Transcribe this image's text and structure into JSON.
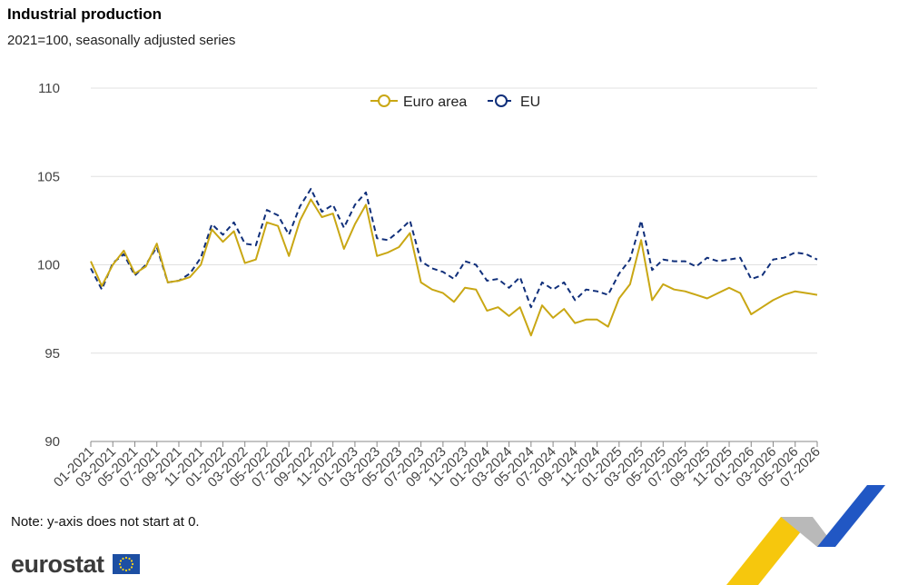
{
  "header": {
    "title": "Industrial production",
    "subtitle": "2021=100, seasonally adjusted series"
  },
  "footer": {
    "note": "Note: y-axis does not start at 0.",
    "logo_text": "eurostat"
  },
  "chart_data": {
    "type": "line",
    "title": "Industrial production",
    "subtitle": "2021=100, seasonally adjusted series",
    "xlabel": "",
    "ylabel": "",
    "ylim": [
      90,
      110
    ],
    "yticks": [
      90,
      95,
      100,
      105,
      110
    ],
    "grid": true,
    "legend_position": "top-center",
    "x": [
      "01-2021",
      "02-2021",
      "03-2021",
      "04-2021",
      "05-2021",
      "06-2021",
      "07-2021",
      "08-2021",
      "09-2021",
      "10-2021",
      "11-2021",
      "12-2021",
      "01-2022",
      "02-2022",
      "03-2022",
      "04-2022",
      "05-2022",
      "06-2022",
      "07-2022",
      "08-2022",
      "09-2022",
      "10-2022",
      "11-2022",
      "12-2022",
      "01-2023",
      "02-2023",
      "03-2023",
      "04-2023",
      "05-2023",
      "06-2023",
      "07-2023",
      "08-2023",
      "09-2023",
      "10-2023",
      "11-2023",
      "12-2023",
      "01-2024",
      "02-2024",
      "03-2024",
      "04-2024",
      "05-2024",
      "06-2024",
      "07-2024",
      "08-2024",
      "09-2024",
      "10-2024",
      "11-2024",
      "12-2024",
      "01-2025",
      "02-2025",
      "03-2025",
      "04-2025",
      "05-2025",
      "06-2025",
      "07-2025",
      "08-2025",
      "09-2025",
      "10-2025",
      "11-2025",
      "12-2025",
      "01-2026",
      "02-2026",
      "03-2026",
      "04-2026",
      "05-2026",
      "06-2026",
      "07-2026"
    ],
    "x_tick_labels": [
      "01-2021",
      "03-2021",
      "05-2021",
      "07-2021",
      "09-2021",
      "11-2021",
      "01-2022",
      "03-2022",
      "05-2022",
      "07-2022",
      "09-2022",
      "11-2022",
      "01-2023",
      "03-2023",
      "05-2023",
      "07-2023",
      "09-2023",
      "11-2023",
      "01-2024",
      "03-2024",
      "05-2024",
      "07-2024",
      "09-2024",
      "11-2024",
      "01-2025",
      "03-2025",
      "05-2025",
      "07-2025",
      "09-2025",
      "11-2025",
      "01-2026",
      "03-2026",
      "05-2026",
      "07-2026"
    ],
    "series": [
      {
        "name": "Euro area",
        "color": "#c9a714",
        "style": "solid",
        "values": [
          100.2,
          98.8,
          100.0,
          100.8,
          99.5,
          99.9,
          101.2,
          99.0,
          99.1,
          99.3,
          100.0,
          102.0,
          101.3,
          101.9,
          100.1,
          100.3,
          102.4,
          102.2,
          100.5,
          102.5,
          103.7,
          102.7,
          102.9,
          100.9,
          102.3,
          103.4,
          100.5,
          100.7,
          101.0,
          101.8,
          99.0,
          98.6,
          98.4,
          97.9,
          98.7,
          98.6,
          97.4,
          97.6,
          97.1,
          97.6,
          96.0,
          97.7,
          97.0,
          97.5,
          96.7,
          96.9,
          96.9,
          96.5,
          98.1,
          98.9,
          101.4,
          98.0,
          98.9,
          98.6,
          98.5,
          98.3,
          98.1,
          98.4,
          98.7,
          98.4,
          97.2,
          97.6,
          98.0,
          98.3,
          98.5,
          98.4,
          98.3
        ]
      },
      {
        "name": "EU",
        "color": "#102f7a",
        "style": "dashed",
        "values": [
          99.8,
          98.6,
          100.1,
          100.6,
          99.4,
          100.0,
          101.0,
          99.0,
          99.1,
          99.5,
          100.4,
          102.3,
          101.7,
          102.4,
          101.2,
          101.1,
          103.1,
          102.8,
          101.7,
          103.3,
          104.3,
          103.0,
          103.4,
          102.1,
          103.4,
          104.1,
          101.5,
          101.4,
          101.9,
          102.5,
          100.2,
          99.8,
          99.6,
          99.2,
          100.2,
          100.0,
          99.1,
          99.2,
          98.7,
          99.3,
          97.6,
          99.0,
          98.6,
          99.0,
          98.0,
          98.6,
          98.5,
          98.3,
          99.5,
          100.3,
          102.5,
          99.7,
          100.3,
          100.2,
          100.2,
          99.9,
          100.4,
          100.2,
          100.3,
          100.4,
          99.2,
          99.4,
          100.3,
          100.4,
          100.7,
          100.6,
          100.3
        ]
      }
    ]
  }
}
